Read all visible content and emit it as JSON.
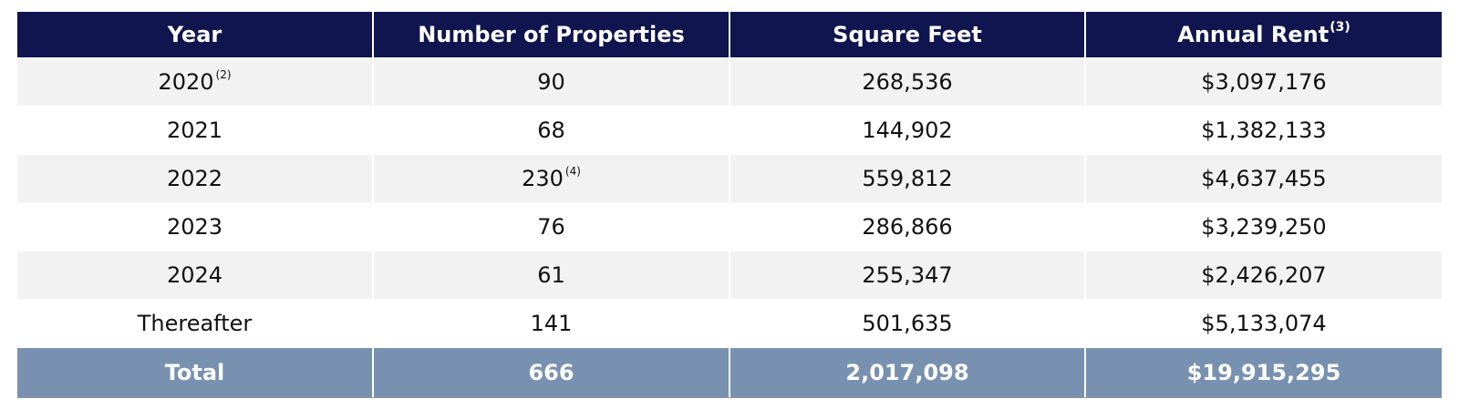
{
  "table": {
    "headers": {
      "year": "Year",
      "properties": "Number of Properties",
      "square_feet": "Square Feet",
      "annual_rent": "Annual Rent",
      "annual_rent_note": "(3)"
    },
    "rows": [
      {
        "year": "2020",
        "year_note": "(2)",
        "properties": "90",
        "properties_note": "",
        "square_feet": "268,536",
        "annual_rent": "$3,097,176"
      },
      {
        "year": "2021",
        "year_note": "",
        "properties": "68",
        "properties_note": "",
        "square_feet": "144,902",
        "annual_rent": "$1,382,133"
      },
      {
        "year": "2022",
        "year_note": "",
        "properties": "230",
        "properties_note": "(4)",
        "square_feet": "559,812",
        "annual_rent": "$4,637,455"
      },
      {
        "year": "2023",
        "year_note": "",
        "properties": "76",
        "properties_note": "",
        "square_feet": "286,866",
        "annual_rent": "$3,239,250"
      },
      {
        "year": "2024",
        "year_note": "",
        "properties": "61",
        "properties_note": "",
        "square_feet": "255,347",
        "annual_rent": "$2,426,207"
      },
      {
        "year": "Thereafter",
        "year_note": "",
        "properties": "141",
        "properties_note": "",
        "square_feet": "501,635",
        "annual_rent": "$5,133,074"
      }
    ],
    "total": {
      "label": "Total",
      "properties": "666",
      "square_feet": "2,017,098",
      "annual_rent": "$19,915,295"
    }
  },
  "colors": {
    "header_bg": "#10154f",
    "total_bg": "#7891b0",
    "shaded_row_bg": "#f2f2f2"
  }
}
